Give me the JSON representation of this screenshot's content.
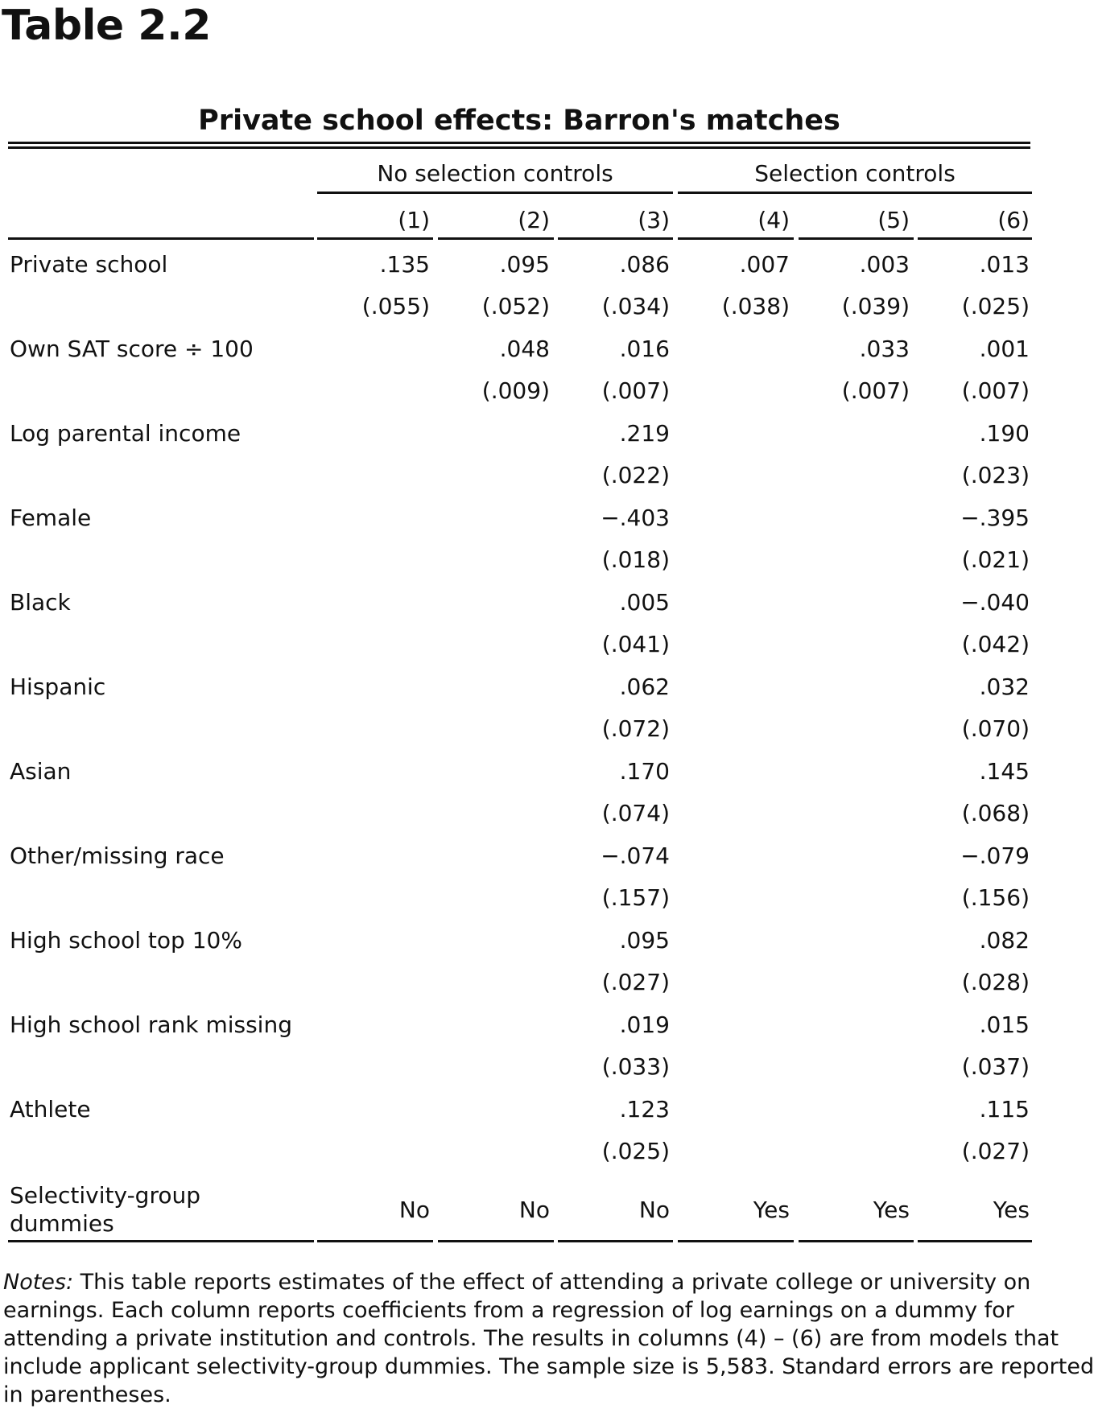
{
  "table_label": "Table 2.2",
  "title": "Private school effects: Barron's matches",
  "groups": [
    "No selection controls",
    "Selection controls"
  ],
  "columns": [
    "(1)",
    "(2)",
    "(3)",
    "(4)",
    "(5)",
    "(6)"
  ],
  "rows": [
    {
      "label": "Private school",
      "coef": [
        ".135",
        ".095",
        ".086",
        ".007",
        ".003",
        ".013"
      ],
      "se": [
        "(.055)",
        "(.052)",
        "(.034)",
        "(.038)",
        "(.039)",
        "(.025)"
      ]
    },
    {
      "label": "Own SAT score ÷ 100",
      "coef": [
        "",
        ".048",
        ".016",
        "",
        ".033",
        ".001"
      ],
      "se": [
        "",
        "(.009)",
        "(.007)",
        "",
        "(.007)",
        "(.007)"
      ]
    },
    {
      "label": "Log parental income",
      "coef": [
        "",
        "",
        ".219",
        "",
        "",
        ".190"
      ],
      "se": [
        "",
        "",
        "(.022)",
        "",
        "",
        "(.023)"
      ]
    },
    {
      "label": "Female",
      "coef": [
        "",
        "",
        "−.403",
        "",
        "",
        "−.395"
      ],
      "se": [
        "",
        "",
        "(.018)",
        "",
        "",
        "(.021)"
      ]
    },
    {
      "label": "Black",
      "coef": [
        "",
        "",
        ".005",
        "",
        "",
        "−.040"
      ],
      "se": [
        "",
        "",
        "(.041)",
        "",
        "",
        "(.042)"
      ]
    },
    {
      "label": "Hispanic",
      "coef": [
        "",
        "",
        ".062",
        "",
        "",
        ".032"
      ],
      "se": [
        "",
        "",
        "(.072)",
        "",
        "",
        "(.070)"
      ]
    },
    {
      "label": "Asian",
      "coef": [
        "",
        "",
        ".170",
        "",
        "",
        ".145"
      ],
      "se": [
        "",
        "",
        "(.074)",
        "",
        "",
        "(.068)"
      ]
    },
    {
      "label": "Other/missing race",
      "coef": [
        "",
        "",
        "−.074",
        "",
        "",
        "−.079"
      ],
      "se": [
        "",
        "",
        "(.157)",
        "",
        "",
        "(.156)"
      ]
    },
    {
      "label": "High school top 10%",
      "coef": [
        "",
        "",
        ".095",
        "",
        "",
        ".082"
      ],
      "se": [
        "",
        "",
        "(.027)",
        "",
        "",
        "(.028)"
      ]
    },
    {
      "label": "High school rank missing",
      "coef": [
        "",
        "",
        ".019",
        "",
        "",
        ".015"
      ],
      "se": [
        "",
        "",
        "(.033)",
        "",
        "",
        "(.037)"
      ]
    },
    {
      "label": "Athlete",
      "coef": [
        "",
        "",
        ".123",
        "",
        "",
        ".115"
      ],
      "se": [
        "",
        "",
        "(.025)",
        "",
        "",
        "(.027)"
      ]
    }
  ],
  "dummies_row": {
    "label_line1": "Selectivity-group",
    "label_line2": "dummies",
    "values": [
      "No",
      "No",
      "No",
      "Yes",
      "Yes",
      "Yes"
    ]
  },
  "notes": {
    "lead": "Notes:",
    "text": " This table reports estimates of the effect of attending a private college or university on earnings. Each column reports coefficients from a regression of log earnings on a dummy for attending a private institution and controls. The results in columns (4) – (6) are from models that include applicant selectivity-group dummies. The sample size is 5,583. Standard errors are reported in parentheses."
  }
}
